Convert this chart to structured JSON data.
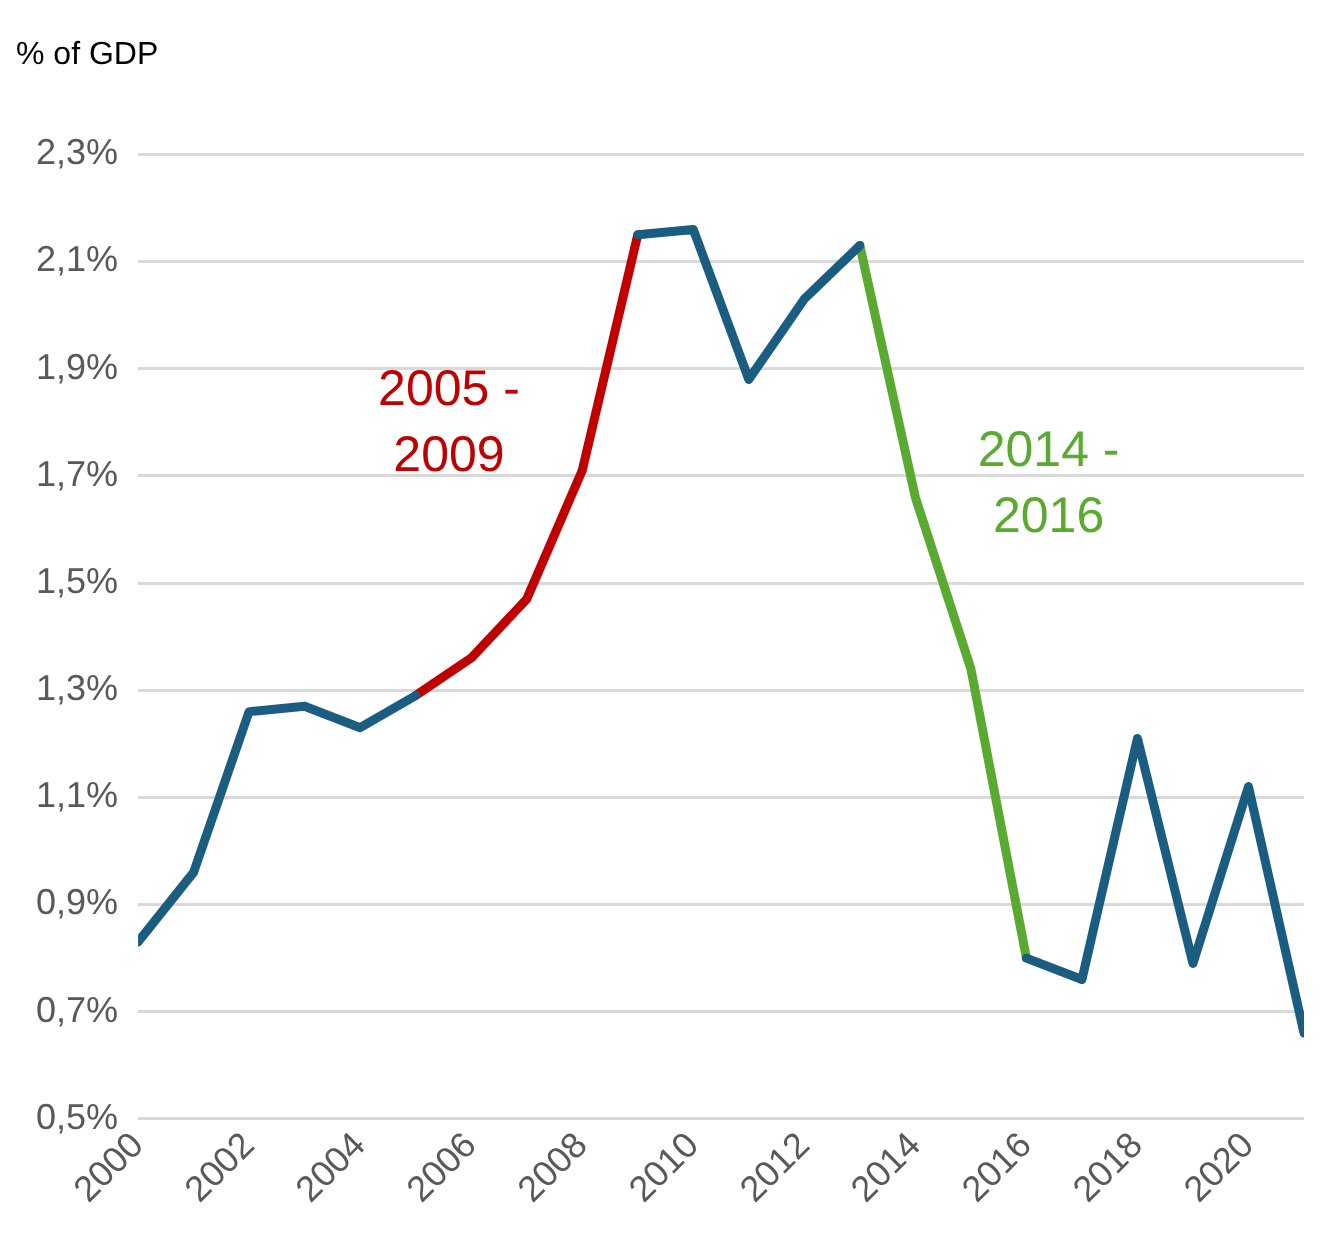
{
  "chart_data": {
    "type": "line",
    "ylabel": "% of GDP",
    "x": [
      2000,
      2001,
      2002,
      2003,
      2004,
      2005,
      2006,
      2007,
      2008,
      2009,
      2010,
      2011,
      2012,
      2013,
      2014,
      2015,
      2016,
      2017,
      2018,
      2019,
      2020,
      2021
    ],
    "series": [
      {
        "color": "#1a5d80",
        "values": [
          0.83,
          0.96,
          1.26,
          1.27,
          1.23,
          1.29,
          null,
          null,
          null,
          2.15,
          2.16,
          1.88,
          2.03,
          2.13,
          null,
          null,
          0.8,
          0.76,
          1.21,
          0.79,
          1.12,
          0.66
        ]
      },
      {
        "color": "#c00000",
        "values": [
          null,
          null,
          null,
          null,
          null,
          1.29,
          1.36,
          1.47,
          1.71,
          2.15,
          null,
          null,
          null,
          null,
          null,
          null,
          null,
          null,
          null,
          null,
          null,
          null
        ]
      },
      {
        "color": "#5aaa32",
        "values": [
          null,
          null,
          null,
          null,
          null,
          null,
          null,
          null,
          null,
          null,
          null,
          null,
          null,
          2.13,
          1.66,
          1.34,
          0.8,
          null,
          null,
          null,
          null,
          null
        ]
      }
    ],
    "annotations": [
      "2005 - 2009",
      "2014 - 2016"
    ],
    "xlim": [
      2000,
      2021
    ],
    "xticks": [
      2000,
      2002,
      2004,
      2006,
      2008,
      2010,
      2012,
      2014,
      2016,
      2018,
      2020
    ],
    "ylim": [
      0.5,
      2.3
    ],
    "yticks": [
      {
        "value": 0.5,
        "label": "0,5%"
      },
      {
        "value": 0.7,
        "label": "0,7%"
      },
      {
        "value": 0.9,
        "label": "0,9%"
      },
      {
        "value": 1.1,
        "label": "1,1%"
      },
      {
        "value": 1.3,
        "label": "1,3%"
      },
      {
        "value": 1.5,
        "label": "1,5%"
      },
      {
        "value": 1.7,
        "label": "1,7%"
      },
      {
        "value": 1.9,
        "label": "1,9%"
      },
      {
        "value": 2.1,
        "label": "2,1%"
      },
      {
        "value": 2.3,
        "label": "2,3%"
      }
    ],
    "grid": "y",
    "legend": false,
    "marker": "none",
    "line_style": "solid"
  }
}
